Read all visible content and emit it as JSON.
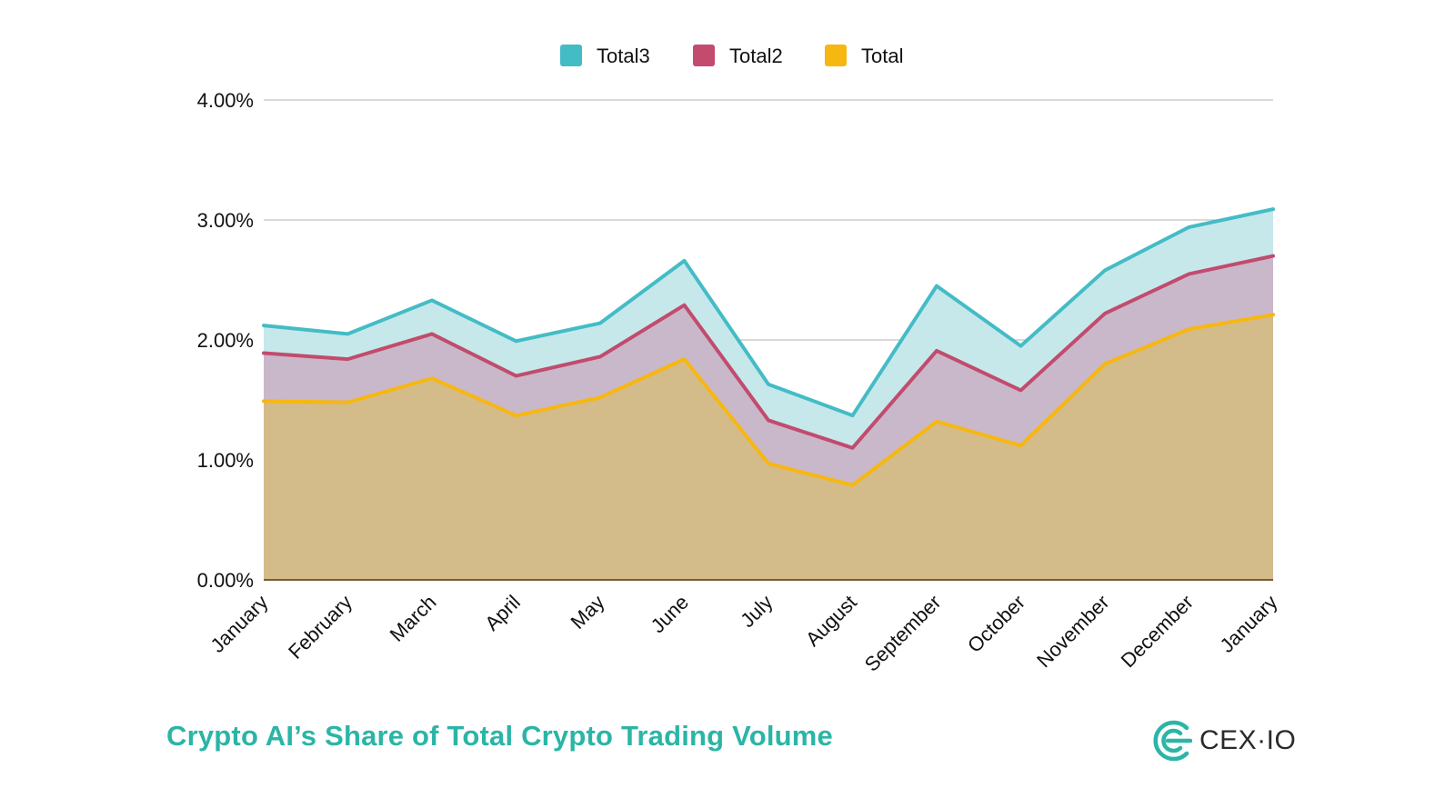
{
  "chart_data": {
    "type": "area",
    "categories": [
      "January",
      "February",
      "March",
      "April",
      "May",
      "June",
      "July",
      "August",
      "September",
      "October",
      "November",
      "December",
      "January"
    ],
    "series": [
      {
        "name": "Total3",
        "values": [
          2.12,
          2.05,
          2.33,
          1.99,
          2.14,
          2.66,
          1.63,
          1.37,
          2.45,
          1.95,
          2.58,
          2.94,
          3.09
        ],
        "color": "#44bcc6",
        "fill": "#c6e8eb"
      },
      {
        "name": "Total2",
        "values": [
          1.89,
          1.84,
          2.05,
          1.7,
          1.86,
          2.29,
          1.33,
          1.1,
          1.91,
          1.58,
          2.22,
          2.55,
          2.7
        ],
        "color": "#c24b6e",
        "fill": "#c9b8c9"
      },
      {
        "name": "Total",
        "values": [
          1.49,
          1.48,
          1.68,
          1.37,
          1.52,
          1.84,
          0.97,
          0.79,
          1.32,
          1.12,
          1.8,
          2.09,
          2.21
        ],
        "color": "#f7b711",
        "fill": "#d4bb8a"
      }
    ],
    "legend_order": [
      "Total3",
      "Total2",
      "Total"
    ],
    "y_ticks": [
      "0.00%",
      "1.00%",
      "2.00%",
      "3.00%",
      "4.00%"
    ],
    "ylim": [
      0,
      4
    ],
    "grid": true,
    "legend_position": "top-center",
    "title": "Crypto AI’s Share of Total Crypto Trading Volume",
    "xlabel": "",
    "ylabel": ""
  },
  "footer": {
    "title": "Crypto AI’s Share of Total Crypto Trading Volume",
    "brand": "CEX·IO"
  },
  "colors": {
    "accent": "#2bb5a6",
    "gridline": "#cccccc",
    "baseline": "#7a5a3a"
  },
  "icons": {
    "brand_logo": "cex-logo-icon"
  }
}
